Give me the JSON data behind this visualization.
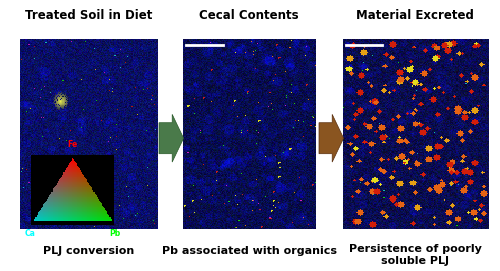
{
  "panel1_bg": "#b8cce4",
  "panel2_bg": "#d0e8cc",
  "panel3_bg": "#f0d8b8",
  "title1": "Treated Soil in Diet",
  "title2": "Cecal Contents",
  "title3": "Material Excreted",
  "caption1": "PLJ conversion",
  "caption2": "Pb associated with organics",
  "caption3": "Persistence of poorly\nsoluble PLJ",
  "arrow1_color": "#4a7a4a",
  "arrow2_color": "#8a5520",
  "title_fontsize": 8.5,
  "caption_fontsize": 8.0,
  "fig_width": 5.0,
  "fig_height": 2.71
}
